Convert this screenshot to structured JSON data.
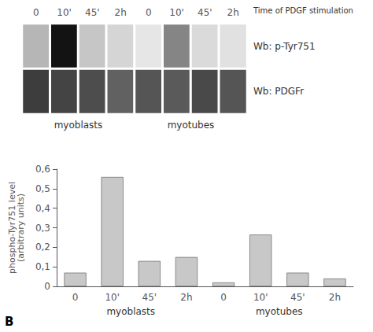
{
  "chart_data": [
    {
      "type": "heatmap",
      "categories": [
        "0",
        "10'",
        "45'",
        "2h",
        "0",
        "10'",
        "45'",
        "2h"
      ],
      "rows": [
        "Wb: p-Tyr751",
        "Wb: PDGFr"
      ],
      "cells": [
        [
          0.25,
          0.92,
          0.18,
          0.12,
          0.05,
          0.45,
          0.1,
          0.07
        ],
        [
          0.75,
          0.72,
          0.68,
          0.6,
          0.65,
          0.63,
          0.7,
          0.65
        ]
      ],
      "color_range": [
        0,
        1
      ],
      "group_labels": [
        "myoblasts",
        "myotubes"
      ],
      "annotations": [
        "Time of PDGF stimulation"
      ]
    },
    {
      "type": "bar",
      "categories": [
        "0",
        "10'",
        "45'",
        "2h",
        "0",
        "10'",
        "45'",
        "2h"
      ],
      "values": [
        0.07,
        0.56,
        0.13,
        0.15,
        0.02,
        0.265,
        0.07,
        0.04
      ],
      "color": "#c8c8c8",
      "ylabel": "phospho-Tyr751 level\n(arbitrary units)",
      "ylim": [
        0,
        0.6
      ],
      "yticks": [
        0,
        {
          "value": 0.1,
          "label": "0,1"
        },
        {
          "value": 0.2,
          "label": "0,2"
        },
        {
          "value": 0.3,
          "label": "0,3"
        },
        {
          "value": 0.4,
          "label": "0,4"
        },
        {
          "value": 0.5,
          "label": "0,5"
        },
        {
          "value": 0.6,
          "label": "0,6"
        }
      ],
      "grid": false,
      "group_labels": [
        "myoblasts",
        "myotubes"
      ],
      "annotations": [
        "B"
      ]
    }
  ]
}
